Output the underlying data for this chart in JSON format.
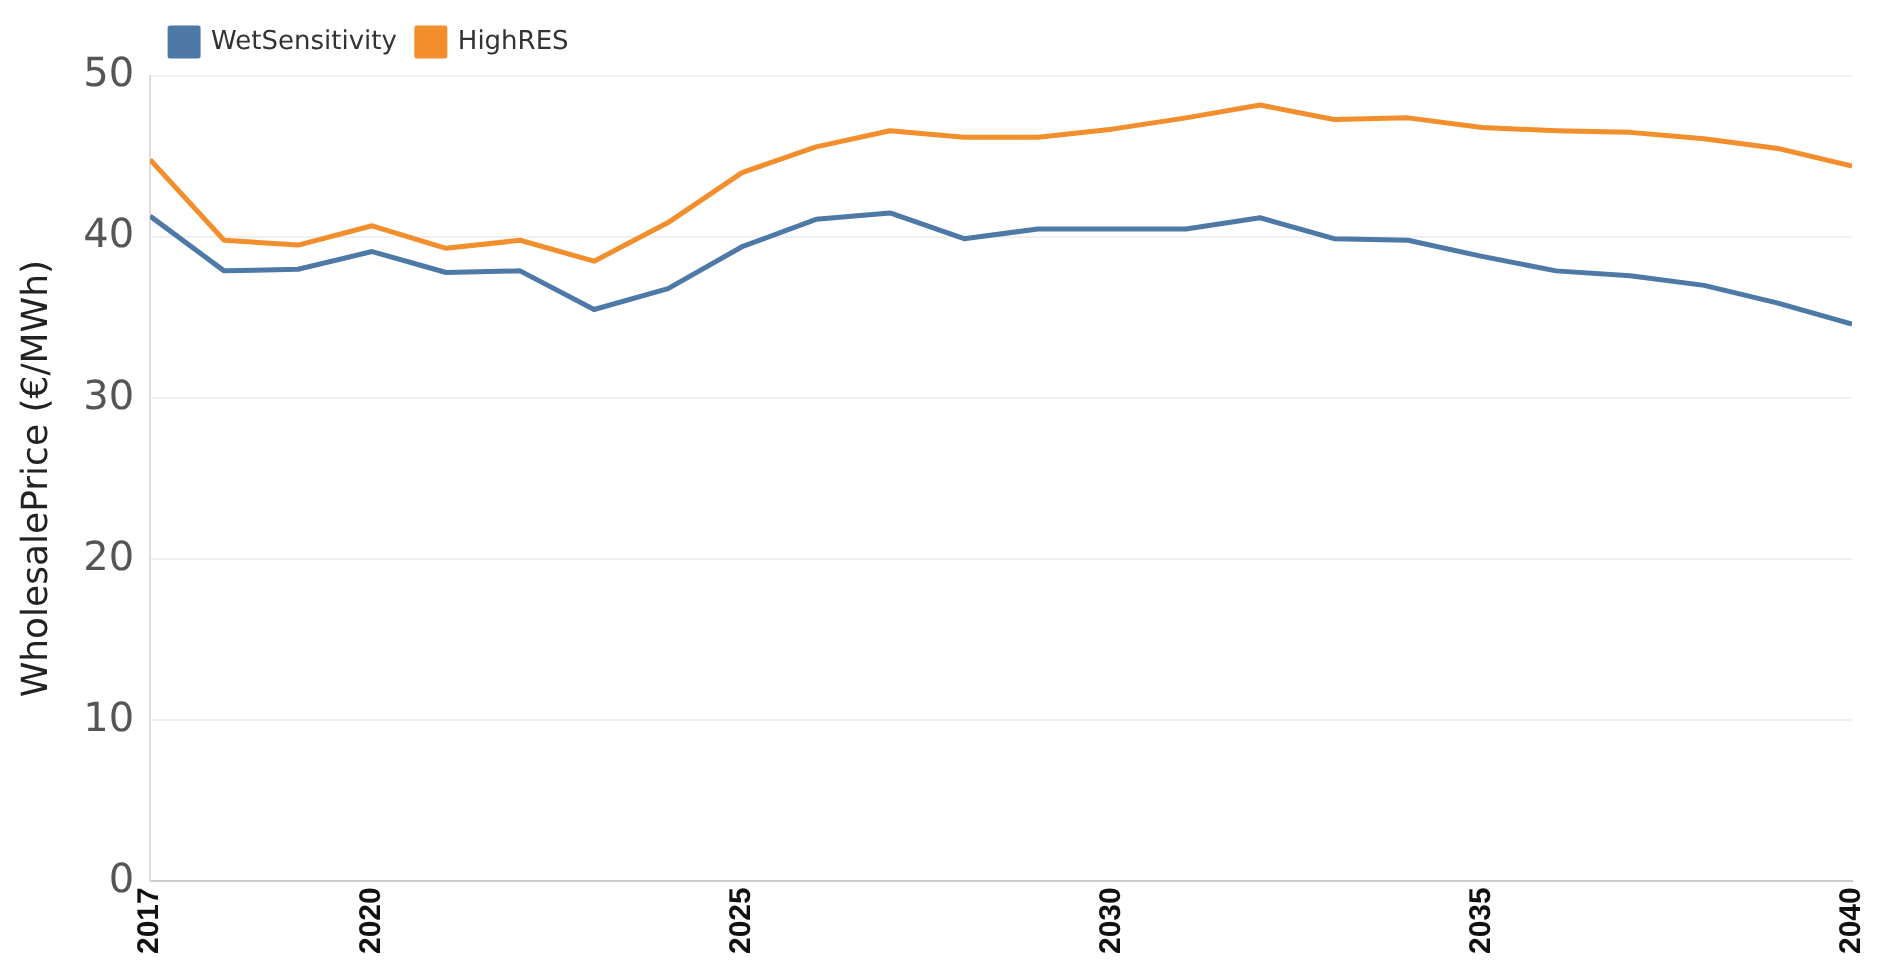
{
  "chart_data": {
    "type": "line",
    "ylabel": "WholesalePrice (€/MWh)",
    "x": [
      2017,
      2018,
      2019,
      2020,
      2021,
      2022,
      2023,
      2024,
      2025,
      2026,
      2027,
      2028,
      2029,
      2030,
      2031,
      2032,
      2033,
      2034,
      2035,
      2036,
      2037,
      2038,
      2039,
      2040
    ],
    "series": [
      {
        "name": "WetSensitivity",
        "color": "#4e79a7",
        "values": [
          41.3,
          37.9,
          38.0,
          39.1,
          37.8,
          37.9,
          35.5,
          36.8,
          39.4,
          41.1,
          41.5,
          39.9,
          40.5,
          40.5,
          40.5,
          41.2,
          39.9,
          39.8,
          38.8,
          37.9,
          37.6,
          37.0,
          35.9,
          34.6
        ]
      },
      {
        "name": "HighRES",
        "color": "#f28e2b",
        "values": [
          44.8,
          39.8,
          39.5,
          40.7,
          39.3,
          39.8,
          38.5,
          40.9,
          44.0,
          45.6,
          46.6,
          46.2,
          46.2,
          46.7,
          47.4,
          48.2,
          47.3,
          47.4,
          46.8,
          46.6,
          46.5,
          46.1,
          45.5,
          44.4
        ]
      }
    ],
    "xlim": [
      2017,
      2040
    ],
    "xticks": [
      2017,
      2020,
      2025,
      2030,
      2035,
      2040
    ],
    "ylim": [
      0,
      50
    ],
    "yticks": [
      0,
      10,
      20,
      30,
      40,
      50
    ],
    "grid": "y",
    "legend": "top left",
    "marker": "none",
    "line_style": "solid"
  }
}
